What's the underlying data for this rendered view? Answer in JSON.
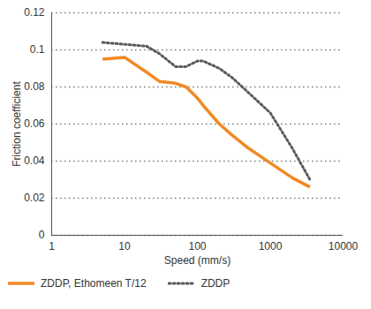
{
  "chart_data": {
    "type": "line",
    "x_label": "Speed (mm/s)",
    "y_label": "Friction coefficient",
    "log": "x",
    "grid": "y",
    "legend": "bottom",
    "xlim": [
      1,
      10000
    ],
    "xticks": [
      1,
      10,
      100,
      1000,
      10000
    ],
    "ylim": [
      0,
      0.12
    ],
    "yticks": [
      0,
      0.02,
      0.04,
      0.06,
      0.08,
      0.1,
      0.12
    ],
    "x": [
      5,
      10,
      20,
      30,
      50,
      70,
      100,
      120,
      200,
      300,
      500,
      1000,
      2000,
      3500
    ],
    "series": [
      {
        "name": "ZDDP, Ethomeen T/12",
        "color": "#f08a24",
        "line_style": "solid",
        "values": [
          0.095,
          0.096,
          0.088,
          0.083,
          0.082,
          0.08,
          0.074,
          0.07,
          0.06,
          0.054,
          0.047,
          0.039,
          0.031,
          0.026
        ]
      },
      {
        "name": "ZDDP",
        "color": "#5a5a5a",
        "line_style": "dotted",
        "values": [
          0.104,
          0.103,
          0.102,
          0.098,
          0.091,
          0.091,
          0.094,
          0.094,
          0.09,
          0.085,
          0.077,
          0.066,
          0.047,
          0.03
        ]
      }
    ]
  }
}
